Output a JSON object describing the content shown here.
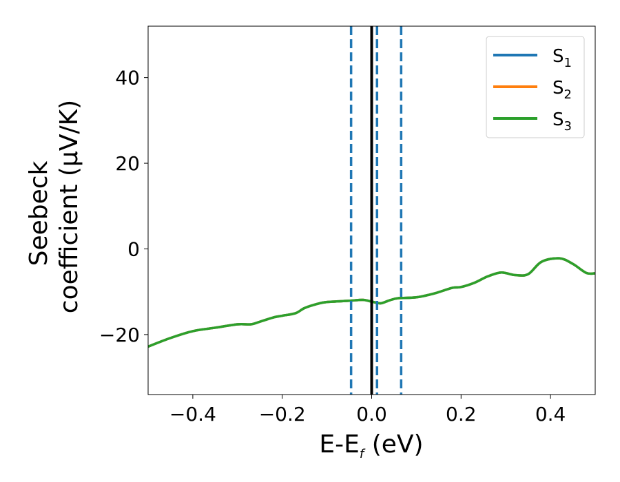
{
  "chart_data": {
    "type": "line",
    "xlabel": {
      "main": "E-E",
      "sub": "f",
      "rest": " (eV)"
    },
    "ylabel": {
      "line1": "Seebeck",
      "line2": "coefficient  (μV/K)"
    },
    "xlim": [
      -0.5,
      0.5
    ],
    "ylim": [
      -34,
      52
    ],
    "xticks": [
      -0.4,
      -0.2,
      0.0,
      0.2,
      0.4
    ],
    "xtick_labels": [
      "−0.4",
      "−0.2",
      "0.0",
      "0.2",
      "0.4"
    ],
    "yticks": [
      -20,
      0,
      20,
      40
    ],
    "ytick_labels": [
      "−20",
      "0",
      "20",
      "40"
    ],
    "legend_position": "top-right",
    "legend": [
      {
        "name": "S",
        "sub": "1",
        "color": "#1f77b4"
      },
      {
        "name": "S",
        "sub": "2",
        "color": "#ff7f0e"
      },
      {
        "name": "S",
        "sub": "3",
        "color": "#2ca02c"
      }
    ],
    "series": [
      {
        "name": "S1",
        "color": "#1f77b4",
        "x": [
          -0.5,
          -0.45,
          -0.4,
          -0.35,
          -0.3,
          -0.27,
          -0.25,
          -0.22,
          -0.2,
          -0.17,
          -0.15,
          -0.12,
          -0.1,
          -0.05,
          -0.02,
          0.0,
          0.02,
          0.04,
          0.06,
          0.1,
          0.14,
          0.18,
          0.2,
          0.23,
          0.26,
          0.29,
          0.32,
          0.35,
          0.38,
          0.42,
          0.45,
          0.48,
          0.5
        ],
        "y": [
          -22.8,
          -20.8,
          -19.2,
          -18.4,
          -17.6,
          -17.6,
          -17.0,
          -16.0,
          -15.6,
          -15.0,
          -13.8,
          -12.8,
          -12.4,
          -12.1,
          -11.9,
          -12.3,
          -12.7,
          -12.0,
          -11.5,
          -11.3,
          -10.4,
          -9.1,
          -8.9,
          -7.9,
          -6.4,
          -5.5,
          -6.1,
          -5.9,
          -3.0,
          -2.2,
          -3.5,
          -5.6,
          -5.7
        ]
      },
      {
        "name": "S2",
        "color": "#ff7f0e",
        "x": [
          -0.5,
          -0.45,
          -0.4,
          -0.35,
          -0.3,
          -0.27,
          -0.25,
          -0.22,
          -0.2,
          -0.17,
          -0.15,
          -0.12,
          -0.1,
          -0.05,
          -0.02,
          0.0,
          0.02,
          0.04,
          0.06,
          0.1,
          0.14,
          0.18,
          0.2,
          0.23,
          0.26,
          0.29,
          0.32,
          0.35,
          0.38,
          0.42,
          0.45,
          0.48,
          0.5
        ],
        "y": [
          -22.8,
          -20.8,
          -19.2,
          -18.4,
          -17.6,
          -17.6,
          -17.0,
          -16.0,
          -15.6,
          -15.0,
          -13.8,
          -12.8,
          -12.4,
          -12.1,
          -11.9,
          -12.3,
          -12.7,
          -12.0,
          -11.5,
          -11.3,
          -10.4,
          -9.1,
          -8.9,
          -7.9,
          -6.4,
          -5.5,
          -6.1,
          -5.9,
          -3.0,
          -2.2,
          -3.5,
          -5.6,
          -5.7
        ]
      },
      {
        "name": "S3",
        "color": "#2ca02c",
        "x": [
          -0.5,
          -0.45,
          -0.4,
          -0.35,
          -0.3,
          -0.27,
          -0.25,
          -0.22,
          -0.2,
          -0.17,
          -0.15,
          -0.12,
          -0.1,
          -0.05,
          -0.02,
          0.0,
          0.02,
          0.04,
          0.06,
          0.1,
          0.14,
          0.18,
          0.2,
          0.23,
          0.26,
          0.29,
          0.32,
          0.35,
          0.38,
          0.42,
          0.45,
          0.48,
          0.5
        ],
        "y": [
          -22.8,
          -20.8,
          -19.2,
          -18.4,
          -17.6,
          -17.6,
          -17.0,
          -16.0,
          -15.6,
          -15.0,
          -13.8,
          -12.8,
          -12.4,
          -12.1,
          -11.9,
          -12.3,
          -12.7,
          -12.0,
          -11.5,
          -11.3,
          -10.4,
          -9.1,
          -8.9,
          -7.9,
          -6.4,
          -5.5,
          -6.1,
          -5.9,
          -3.0,
          -2.2,
          -3.5,
          -5.6,
          -5.7
        ]
      }
    ],
    "vlines": [
      {
        "x": 0.0,
        "style": "solid",
        "color": "#000000"
      },
      {
        "x": -0.046,
        "style": "dashed",
        "color": "#1f77b4"
      },
      {
        "x": 0.012,
        "style": "dashed",
        "color": "#1f77b4"
      },
      {
        "x": 0.066,
        "style": "dashed",
        "color": "#1f77b4"
      }
    ]
  }
}
